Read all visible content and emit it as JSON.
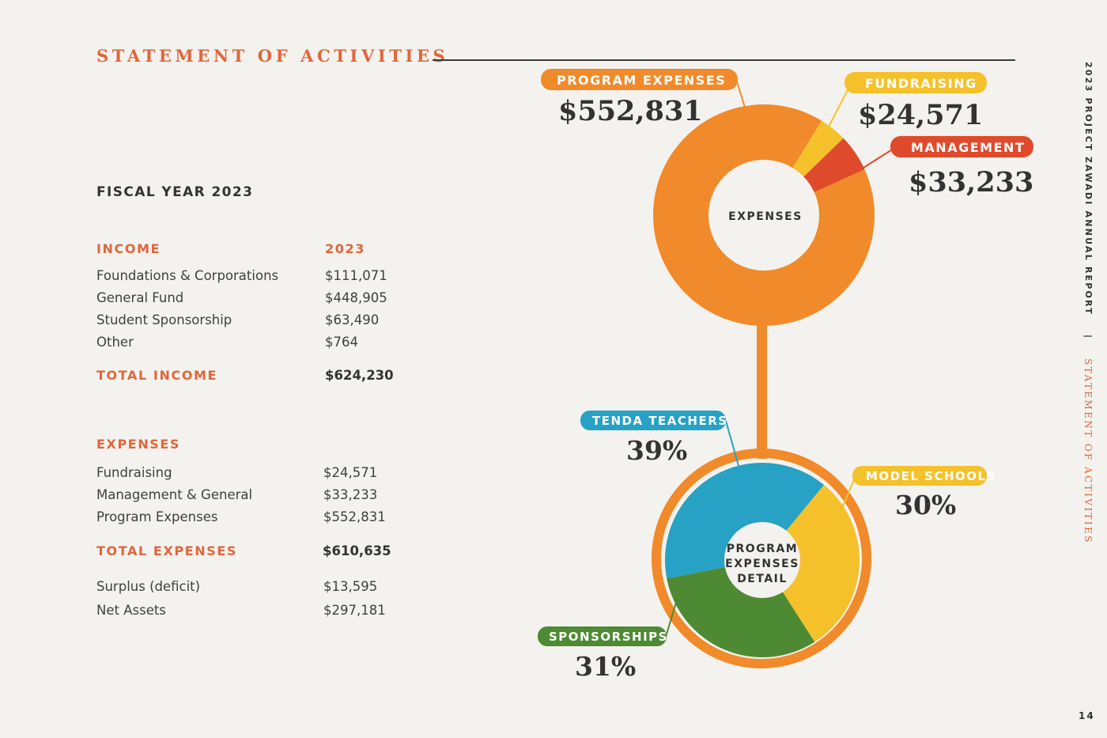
{
  "header": {
    "title": "STATEMENT OF ACTIVITIES"
  },
  "fiscal_year": "FISCAL YEAR 2023",
  "income": {
    "heading": "INCOME",
    "year": "2023",
    "rows": [
      {
        "label": "Foundations & Corporations",
        "value": "$111,071"
      },
      {
        "label": "General Fund",
        "value": "$448,905"
      },
      {
        "label": "Student Sponsorship",
        "value": "$63,490"
      },
      {
        "label": "Other",
        "value": "$764"
      }
    ],
    "total_label": "TOTAL INCOME",
    "total_value": "$624,230"
  },
  "expenses": {
    "heading": "EXPENSES",
    "rows": [
      {
        "label": "Fundraising",
        "value": "$24,571"
      },
      {
        "label": "Management & General",
        "value": "$33,233"
      },
      {
        "label": "Program Expenses",
        "value": "$552,831"
      }
    ],
    "total_label": "TOTAL EXPENSES",
    "total_value": "$610,635"
  },
  "summary": [
    {
      "label": "Surplus (deficit)",
      "value": "$13,595"
    },
    {
      "label": "Net Assets",
      "value": "$297,181"
    }
  ],
  "side": {
    "report": "2023 PROJECT ZAWADI ANNUAL REPORT",
    "separator": "|",
    "section": "STATEMENT OF ACTIVITIES"
  },
  "page_number": "14",
  "chart_data": [
    {
      "type": "pie",
      "center_label": [
        "EXPENSES"
      ],
      "categories": [
        "PROGRAM EXPENSES",
        "FUNDRAISING",
        "MANAGEMENT"
      ],
      "values": [
        552831,
        24571,
        33233
      ],
      "value_labels": [
        "$552,831",
        "$24,571",
        "$33,233"
      ],
      "colors": [
        "#f18a2a",
        "#f5c12b",
        "#e04a2c"
      ]
    },
    {
      "type": "pie",
      "center_label": [
        "PROGRAM",
        "EXPENSES",
        "DETAIL"
      ],
      "categories": [
        "TENDA TEACHERS",
        "MODEL SCHOOLS",
        "SPONSORSHIPS"
      ],
      "values": [
        39,
        30,
        31
      ],
      "value_labels": [
        "39%",
        "30%",
        "31%"
      ],
      "colors": [
        "#27a2c4",
        "#f5c12b",
        "#4e8a34"
      ]
    }
  ]
}
